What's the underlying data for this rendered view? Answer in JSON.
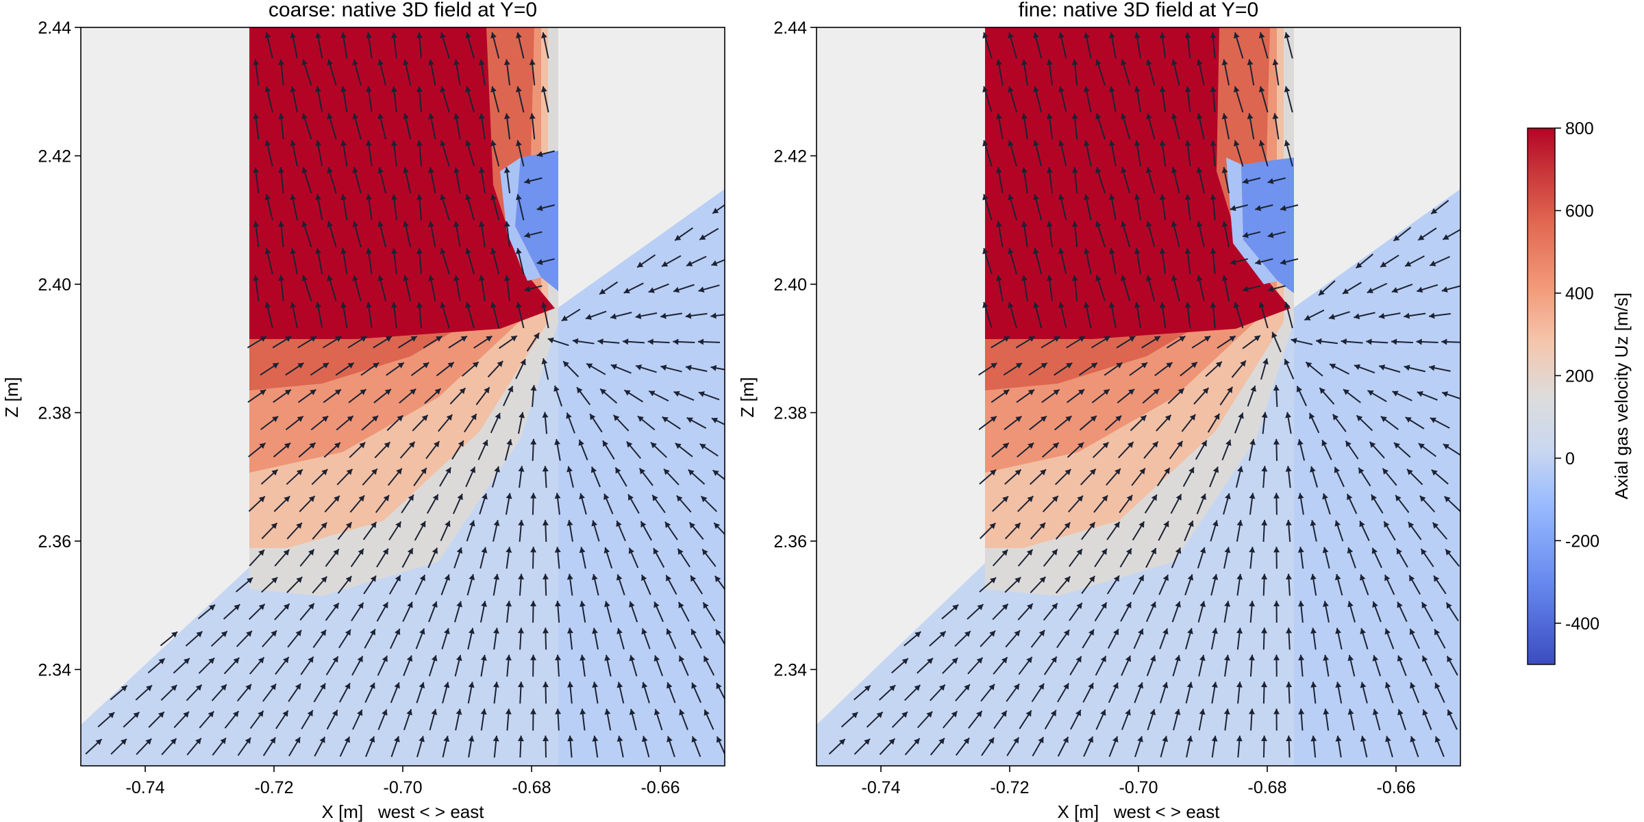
{
  "figure": {
    "colors": {
      "background": "#ffffff",
      "axes_background": "#eeeeee",
      "arrow": "#1c2233",
      "frame": "#000000"
    }
  },
  "chart_data": [
    {
      "type": "heatmap",
      "title": "coarse: native 3D field at Y=0",
      "xlabel": "X [m]   west < > east",
      "ylabel": "Z [m]",
      "xlim": [
        -0.75,
        -0.65
      ],
      "ylim": [
        2.325,
        2.44
      ],
      "xticks": [
        -0.74,
        -0.72,
        -0.7,
        -0.68,
        -0.66
      ],
      "xtick_labels": [
        "-0.74",
        "-0.72",
        "-0.70",
        "-0.68",
        "-0.66"
      ],
      "yticks": [
        2.34,
        2.36,
        2.38,
        2.4,
        2.42,
        2.44
      ],
      "ytick_labels": [
        "2.34",
        "2.36",
        "2.38",
        "2.40",
        "2.42",
        "2.44"
      ],
      "geometry": {
        "jet_x": [
          -0.724,
          -0.676
        ],
        "jet_bottom_z": 2.356,
        "recirculation_x": [
          -0.68,
          -0.676
        ],
        "recirculation_z": [
          2.398,
          2.422
        ],
        "lower_left_wedge": [
          [
            -0.724,
            2.356
          ],
          [
            -0.75,
            2.333
          ]
        ],
        "right_wedge": [
          [
            -0.676,
            2.396
          ],
          [
            -0.65,
            2.415
          ]
        ]
      },
      "field": {
        "quantity": "Axial gas velocity Uz [m/s]",
        "jet_core_uz": 800,
        "core_bottom_z": 2.392,
        "recirculation_uz": -250,
        "far_field_uz": -60
      }
    },
    {
      "type": "heatmap",
      "title": "fine: native 3D field at Y=0",
      "xlabel": "X [m]   west < > east",
      "ylabel": "Z [m]",
      "xlim": [
        -0.75,
        -0.65
      ],
      "ylim": [
        2.325,
        2.44
      ],
      "xticks": [
        -0.74,
        -0.72,
        -0.7,
        -0.68,
        -0.66
      ],
      "xtick_labels": [
        "-0.74",
        "-0.72",
        "-0.70",
        "-0.68",
        "-0.66"
      ],
      "yticks": [
        2.34,
        2.36,
        2.38,
        2.4,
        2.42,
        2.44
      ],
      "ytick_labels": [
        "2.34",
        "2.36",
        "2.38",
        "2.40",
        "2.42",
        "2.44"
      ],
      "geometry": {
        "jet_x": [
          -0.724,
          -0.676
        ],
        "jet_bottom_z": 2.356,
        "recirculation_x": [
          -0.684,
          -0.676
        ],
        "recirculation_z": [
          2.398,
          2.42
        ],
        "lower_left_wedge": [
          [
            -0.724,
            2.356
          ],
          [
            -0.75,
            2.332
          ]
        ],
        "right_wedge": [
          [
            -0.676,
            2.396
          ],
          [
            -0.65,
            2.415
          ]
        ]
      },
      "field": {
        "quantity": "Axial gas velocity Uz [m/s]",
        "jet_core_uz": 800,
        "core_bottom_z": 2.392,
        "recirculation_uz": -250,
        "far_field_uz": -60
      }
    }
  ],
  "colorbar": {
    "label": "Axial gas velocity Uz [m/s]",
    "range": [
      -500,
      800
    ],
    "ticks": [
      800,
      600,
      400,
      200,
      0,
      -200,
      -400
    ],
    "tick_labels": [
      "800",
      "600",
      "400",
      "200",
      "0",
      "-200",
      "-400"
    ],
    "colormap": "coolwarm"
  }
}
